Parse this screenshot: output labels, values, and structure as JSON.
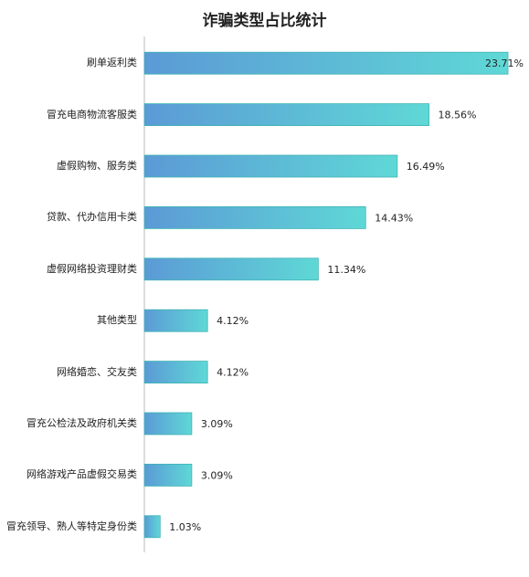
{
  "chart_data": {
    "type": "bar",
    "orientation": "horizontal",
    "title": "诈骗类型占比统计",
    "categories": [
      "刷单返利类",
      "冒充电商物流客服类",
      "虚假购物、服务类",
      "贷款、代办信用卡类",
      "虚假网络投资理财类",
      "其他类型",
      "网络婚恋、交友类",
      "冒充公检法及政府机关类",
      "网络游戏产品虚假交易类",
      "冒充领导、熟人等特定身份类"
    ],
    "values": [
      23.71,
      18.56,
      16.49,
      14.43,
      11.34,
      4.12,
      4.12,
      3.09,
      3.09,
      1.03
    ],
    "value_labels": [
      "23.71%",
      "18.56%",
      "16.49%",
      "14.43%",
      "11.34%",
      "4.12%",
      "4.12%",
      "3.09%",
      "3.09%",
      "1.03%"
    ],
    "color": "#5bb8d6"
  }
}
